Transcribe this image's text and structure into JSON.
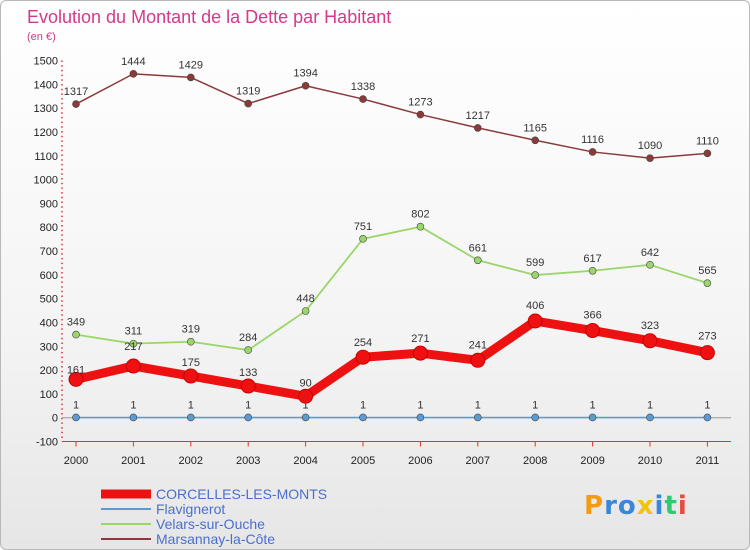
{
  "chart_data": {
    "type": "line",
    "title": "Evolution du Montant de la Dette par Habitant",
    "subtitle": "(en €)",
    "x": [
      "2000",
      "2001",
      "2002",
      "2003",
      "2004",
      "2005",
      "2006",
      "2007",
      "2008",
      "2009",
      "2010",
      "2011"
    ],
    "ylim": [
      -100,
      1500
    ],
    "yticks": [
      -100,
      0,
      100,
      200,
      300,
      400,
      500,
      600,
      700,
      800,
      900,
      1000,
      1100,
      1200,
      1300,
      1400,
      1500
    ],
    "grid": false,
    "legend_position": "bottom-left",
    "series": [
      {
        "name": "CORCELLES-LES-MONTS",
        "color": "#ee1111",
        "values": [
          161,
          217,
          175,
          133,
          90,
          254,
          271,
          241,
          406,
          366,
          323,
          273
        ]
      },
      {
        "name": "Flavignerot",
        "color": "#5b9bd5",
        "values": [
          1,
          1,
          1,
          1,
          1,
          1,
          1,
          1,
          1,
          1,
          1,
          1
        ]
      },
      {
        "name": "Velars-sur-Ouche",
        "color": "#9ad66a",
        "values": [
          349,
          311,
          319,
          284,
          448,
          751,
          802,
          661,
          599,
          617,
          642,
          565
        ]
      },
      {
        "name": "Marsannay-la-Côte",
        "color": "#8b3a3a",
        "values": [
          1317,
          1444,
          1429,
          1319,
          1394,
          1338,
          1273,
          1217,
          1165,
          1116,
          1090,
          1110
        ]
      }
    ]
  },
  "logo": {
    "letters": [
      "P",
      "r",
      "o",
      "x",
      "i",
      "t",
      "i"
    ],
    "colors": [
      "#f39c12",
      "#3a86d8",
      "#3a86d8",
      "#f1c40f",
      "#3a86d8",
      "#2ecc71",
      "#e74c3c"
    ]
  }
}
